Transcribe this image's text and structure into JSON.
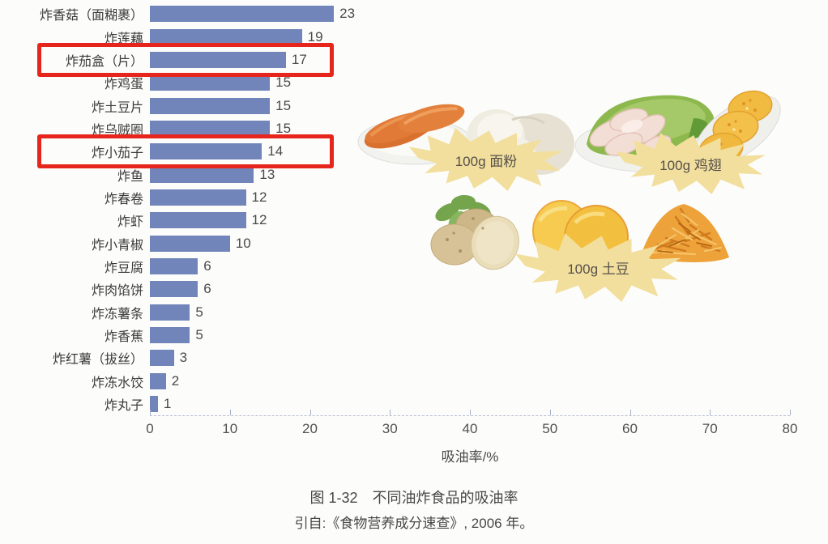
{
  "figure": {
    "caption_line1": "图 1-32　不同油炸食品的吸油率",
    "caption_line2": "引自:《食物营养成分速查》, 2006 年。",
    "photo_labels": [
      {
        "id": "flour",
        "text": "100g 面粉"
      },
      {
        "id": "wing",
        "text": "100g 鸡翅"
      },
      {
        "id": "potato",
        "text": "100g 土豆"
      }
    ]
  },
  "chart_data": {
    "type": "bar",
    "orientation": "horizontal",
    "title": "不同油炸食品的吸油率",
    "xlabel": "吸油率/%",
    "xlim": [
      0,
      80
    ],
    "xticks": [
      0,
      10,
      20,
      30,
      40,
      50,
      60,
      70,
      80
    ],
    "grid": false,
    "legend": "none",
    "bar_color": "#7285ba",
    "highlight_box_color": "#e6261c",
    "highlighted_rows": [
      2,
      6
    ],
    "categories": [
      "炸香菇（面糊裹）",
      "炸莲藕",
      "炸茄盒（片）",
      "炸鸡蛋",
      "炸土豆片",
      "炸乌贼圈",
      "炸小茄子",
      "炸鱼",
      "炸春卷",
      "炸虾",
      "炸小青椒",
      "炸豆腐",
      "炸肉馅饼",
      "炸冻薯条",
      "炸香蕉",
      "炸红薯（拔丝）",
      "炸冻水饺",
      "炸丸子"
    ],
    "values": [
      23,
      19,
      17,
      15,
      15,
      15,
      14,
      13,
      12,
      12,
      10,
      6,
      6,
      5,
      5,
      3,
      2,
      1
    ]
  }
}
